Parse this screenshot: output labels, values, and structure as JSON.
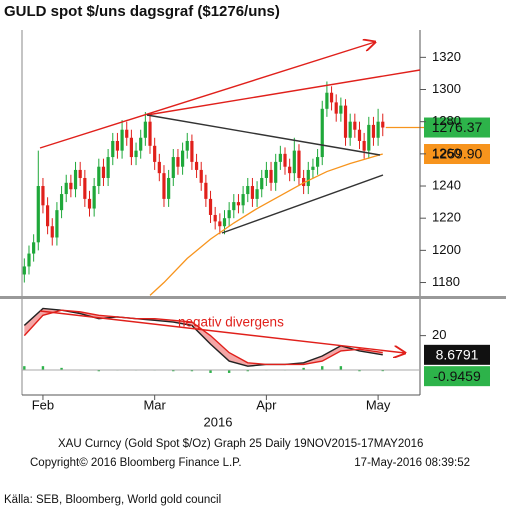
{
  "chart_data": [
    {
      "type": "candlestick",
      "title": "GULD spot $/uns dagsgraf ($1276/uns)",
      "xlim": [
        -0.5,
        85
      ],
      "ylim": [
        1171,
        1337
      ],
      "yticks": [
        1180,
        1200,
        1220,
        1240,
        1260,
        1280,
        1300,
        1320
      ],
      "up_color": "#1fa83a",
      "down_color": "#e0201b",
      "open": [
        1185,
        1190,
        1198,
        1205,
        1240,
        1228,
        1215,
        1208,
        1225,
        1235,
        1242,
        1238,
        1250,
        1245,
        1232,
        1226,
        1240,
        1252,
        1245,
        1258,
        1268,
        1262,
        1275,
        1270,
        1258,
        1262,
        1270,
        1280,
        1265,
        1255,
        1248,
        1232,
        1245,
        1258,
        1252,
        1262,
        1268,
        1255,
        1250,
        1242,
        1232,
        1222,
        1218,
        1215,
        1220,
        1225,
        1230,
        1228,
        1235,
        1240,
        1232,
        1238,
        1245,
        1250,
        1242,
        1255,
        1260,
        1252,
        1248,
        1262,
        1245,
        1240,
        1250,
        1252,
        1258,
        1288,
        1298,
        1292,
        1285,
        1290,
        1270,
        1280,
        1275,
        1268,
        1262,
        1278,
        1270,
        1280
      ],
      "high": [
        1195,
        1203,
        1210,
        1262,
        1245,
        1233,
        1220,
        1230,
        1240,
        1247,
        1247,
        1255,
        1255,
        1250,
        1237,
        1245,
        1257,
        1257,
        1263,
        1273,
        1273,
        1281,
        1280,
        1275,
        1267,
        1275,
        1286,
        1284,
        1270,
        1260,
        1253,
        1250,
        1263,
        1263,
        1267,
        1273,
        1272,
        1260,
        1255,
        1247,
        1237,
        1227,
        1223,
        1225,
        1230,
        1235,
        1235,
        1240,
        1245,
        1245,
        1243,
        1250,
        1255,
        1255,
        1260,
        1265,
        1264,
        1257,
        1270,
        1266,
        1250,
        1255,
        1257,
        1263,
        1293,
        1305,
        1302,
        1297,
        1295,
        1294,
        1285,
        1285,
        1280,
        1273,
        1283,
        1283,
        1288,
        1285
      ],
      "low": [
        1180,
        1185,
        1193,
        1200,
        1223,
        1210,
        1203,
        1203,
        1220,
        1230,
        1233,
        1233,
        1240,
        1227,
        1221,
        1221,
        1235,
        1240,
        1240,
        1253,
        1257,
        1257,
        1265,
        1253,
        1253,
        1257,
        1265,
        1260,
        1250,
        1243,
        1227,
        1227,
        1240,
        1247,
        1247,
        1257,
        1250,
        1245,
        1237,
        1227,
        1217,
        1213,
        1210,
        1210,
        1215,
        1220,
        1223,
        1223,
        1230,
        1227,
        1227,
        1233,
        1240,
        1237,
        1237,
        1250,
        1247,
        1243,
        1243,
        1240,
        1235,
        1235,
        1245,
        1247,
        1253,
        1283,
        1287,
        1280,
        1280,
        1265,
        1265,
        1270,
        1263,
        1257,
        1257,
        1265,
        1265,
        1271
      ],
      "close": [
        1190,
        1198,
        1205,
        1240,
        1228,
        1215,
        1208,
        1225,
        1235,
        1242,
        1238,
        1250,
        1245,
        1232,
        1226,
        1240,
        1252,
        1245,
        1258,
        1268,
        1262,
        1275,
        1270,
        1258,
        1262,
        1270,
        1280,
        1265,
        1255,
        1248,
        1232,
        1245,
        1258,
        1252,
        1262,
        1268,
        1255,
        1250,
        1242,
        1232,
        1222,
        1218,
        1215,
        1220,
        1225,
        1230,
        1228,
        1235,
        1240,
        1232,
        1238,
        1245,
        1250,
        1242,
        1255,
        1260,
        1252,
        1248,
        1262,
        1245,
        1240,
        1250,
        1252,
        1258,
        1288,
        1298,
        1292,
        1285,
        1290,
        1270,
        1280,
        1275,
        1268,
        1262,
        1278,
        1270,
        1280,
        1276.37
      ],
      "close_label": "1276.37",
      "close_label_color": "#2db34a",
      "ma": {
        "color": "#f7941d",
        "x": [
          27,
          30,
          35,
          40,
          45,
          50,
          55,
          60,
          65,
          70,
          77
        ],
        "values": [
          1172,
          1180,
          1195,
          1207,
          1217,
          1226,
          1234,
          1242,
          1249,
          1254,
          1259.9
        ],
        "value_label": "1259.90"
      }
    },
    {
      "type": "line",
      "xlim": [
        -0.5,
        85
      ],
      "ylim": [
        -15,
        41
      ],
      "yticks": [
        20
      ],
      "xticks": [
        {
          "value": 4,
          "label": "Feb"
        },
        {
          "value": 28,
          "label": "Mar"
        },
        {
          "value": 52,
          "label": "Apr"
        },
        {
          "value": 76,
          "label": "May"
        }
      ],
      "xlabel": "2016",
      "annotation": "negativ divergens",
      "x": [
        0,
        4,
        8,
        12,
        16,
        20,
        24,
        28,
        32,
        36,
        40,
        44,
        48,
        52,
        56,
        60,
        64,
        68,
        72,
        77
      ],
      "series": [
        {
          "color": "#222222",
          "values": [
            26,
            36,
            35,
            33,
            30,
            31,
            30,
            29,
            28,
            26,
            15,
            5,
            2,
            3,
            3,
            4,
            8,
            14,
            11,
            8.6791
          ],
          "value_label": "8.6791"
        },
        {
          "color": "#e0201b",
          "values": [
            20,
            32,
            35,
            34,
            32,
            31,
            30,
            30,
            29,
            28,
            20,
            10,
            4,
            3,
            3,
            3,
            5,
            11,
            12,
            10
          ]
        },
        {
          "color": "#2db34a",
          "type": "bar",
          "values": [
            2,
            2,
            1,
            0,
            -1,
            0,
            0,
            0,
            -1,
            -1,
            -2,
            -2,
            -1,
            0,
            0,
            1,
            2,
            2,
            -1,
            -0.9459
          ],
          "value_label": "-0.9459"
        }
      ],
      "fill_color": "#f4a6a6"
    }
  ],
  "footer": {
    "lines": [
      "XAU Curncy (Gold Spot  $/Oz) Graph 25  Daily 19NOV2015-17MAY2016",
      "Copyright© 2016 Bloomberg Finance L.P."
    ],
    "timestamp": "17-May-2016 08:39:52",
    "source": "Källa: SEB, Bloomberg, World gold council"
  }
}
